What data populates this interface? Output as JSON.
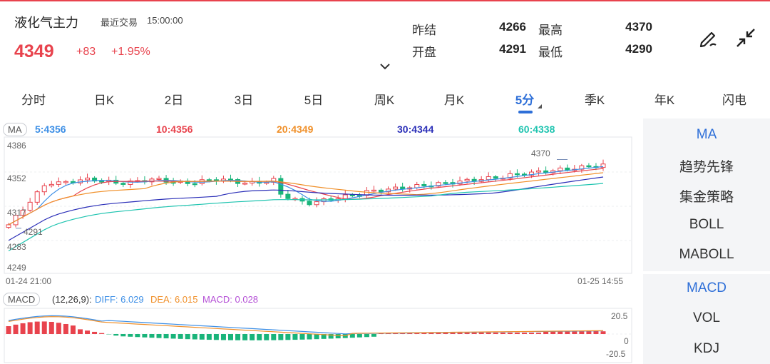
{
  "header": {
    "title": "液化气主力",
    "last_trade_label": "最近交易",
    "last_trade_time": "15:00:00",
    "price": "4349",
    "change": "+83",
    "change_pct": "+1.95%",
    "quote": [
      {
        "label": "昨结",
        "value": "4266"
      },
      {
        "label": "最高",
        "value": "4370"
      },
      {
        "label": "开盘",
        "value": "4291"
      },
      {
        "label": "最低",
        "value": "4290"
      }
    ],
    "icons": {
      "edit": "pen-icon",
      "collapse": "shrink-arrows-icon",
      "expand": "chevron-down-icon"
    }
  },
  "tabs": [
    "分时",
    "日K",
    "2日",
    "3日",
    "5日",
    "周K",
    "月K",
    "5分",
    "季K",
    "年K",
    "闪电"
  ],
  "active_tab": "5分",
  "main_chart": {
    "indicator_tag": "MA",
    "ma_legend": [
      {
        "text": "5:4356",
        "color": "#3d8fe6"
      },
      {
        "text": "10:4356",
        "color": "#e8434d"
      },
      {
        "text": "20:4349",
        "color": "#f0902a"
      },
      {
        "text": "30:4344",
        "color": "#2b2fb8"
      },
      {
        "text": "60:4338",
        "color": "#1fc4b0"
      }
    ],
    "y_labels": [
      "4386",
      "4352",
      "4317",
      "4283",
      "4249"
    ],
    "high_marker": "4370",
    "low_marker": "4291",
    "start_time": "01-24 21:00",
    "end_time": "01-25 14:55"
  },
  "macd": {
    "tag": "MACD",
    "params": "(12,26,9):",
    "diff": "DIFF: 6.029",
    "dea": "DEA: 6.015",
    "macd": "MACD: 0.028",
    "y_labels": [
      "20.5",
      "0",
      "-20.5"
    ]
  },
  "side_upper": [
    "MA",
    "趋势先锋",
    "集金策略",
    "BOLL",
    "MABOLL"
  ],
  "side_lower": [
    "MACD",
    "VOL",
    "KDJ"
  ],
  "colors": {
    "up": "#e8434d",
    "down": "#19b47a",
    "accent": "#2e6fd8"
  }
}
